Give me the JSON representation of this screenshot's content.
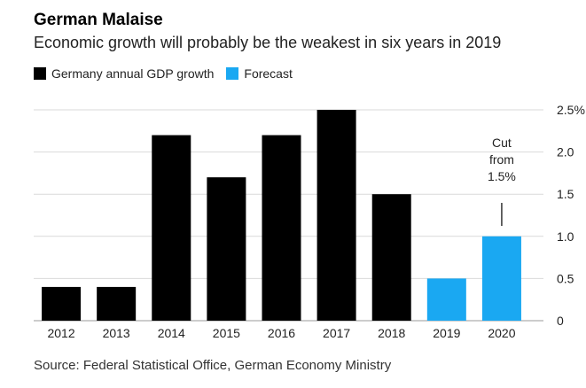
{
  "header": {
    "title": "German Malaise",
    "subtitle": "Economic growth will probably be the weakest in six years in 2019"
  },
  "legend": [
    {
      "label": "Germany annual GDP growth",
      "color": "#000000"
    },
    {
      "label": "Forecast",
      "color": "#1aa8f2"
    }
  ],
  "source": "Source: Federal Statistical Office, German Economy Ministry",
  "chart_data": {
    "type": "bar",
    "categories": [
      "2012",
      "2013",
      "2014",
      "2015",
      "2016",
      "2017",
      "2018",
      "2019",
      "2020"
    ],
    "values": [
      0.4,
      0.4,
      2.2,
      1.7,
      2.2,
      2.5,
      1.5,
      0.5,
      1.0
    ],
    "forecast": [
      false,
      false,
      false,
      false,
      false,
      false,
      false,
      true,
      true
    ],
    "colors": {
      "actual": "#000000",
      "forecast": "#1aa8f2"
    },
    "ylim": [
      0,
      2.5
    ],
    "yticks": [
      {
        "value": 0,
        "label": "0"
      },
      {
        "value": 0.5,
        "label": "0.5"
      },
      {
        "value": 1.0,
        "label": "1.0"
      },
      {
        "value": 1.5,
        "label": "1.5"
      },
      {
        "value": 2.0,
        "label": "2.0"
      },
      {
        "value": 2.5,
        "label": "2.5%"
      }
    ],
    "grid": true,
    "yaxis_position": "right",
    "legend_position": "top-left",
    "annotation": {
      "category": "2020",
      "lines": [
        "Cut",
        "from",
        "1.5%"
      ]
    }
  }
}
